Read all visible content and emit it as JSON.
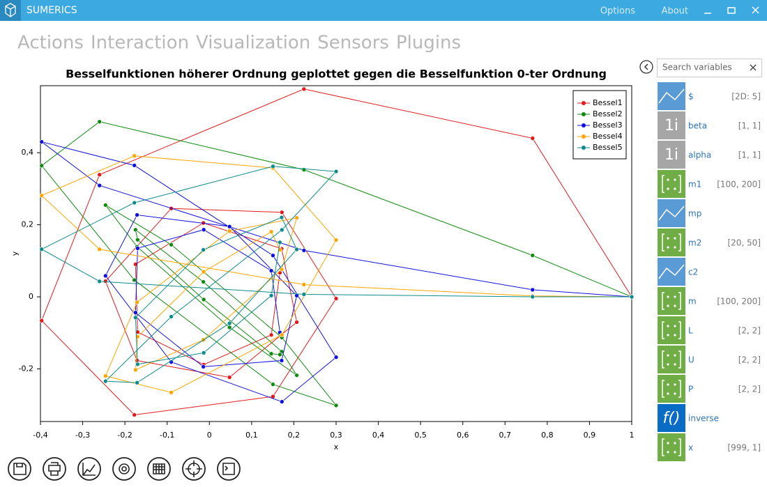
{
  "app": {
    "title": "SUMERICS",
    "menu": [
      "Options",
      "About"
    ],
    "tabs": [
      "Actions",
      "Interaction",
      "Visualization",
      "Sensors",
      "Plugins"
    ],
    "active_tab": 2,
    "search_placeholder": "Search variables",
    "variables": [
      {
        "name": "$",
        "size": "[2D: 5]",
        "color": "#5b9bd5"
      },
      {
        "name": "beta",
        "size": "[1, 1]",
        "color": "#a6a6a6",
        "icon": "1i"
      },
      {
        "name": "alpha",
        "size": "[1, 1]",
        "color": "#a6a6a6",
        "icon": "1i"
      },
      {
        "name": "m1",
        "size": "[100, 200]",
        "color": "#70ad47"
      },
      {
        "name": "mp",
        "color": "#5b9bd5"
      },
      {
        "name": "m2",
        "size": "[20, 50]",
        "color": "#70ad47"
      },
      {
        "name": "c2",
        "color": "#5b9bd5"
      },
      {
        "name": "m",
        "size": "[100, 200]",
        "color": "#70ad47"
      },
      {
        "name": "L",
        "size": "[2, 2]",
        "color": "#70ad47"
      },
      {
        "name": "U",
        "size": "[2, 2]",
        "color": "#70ad47"
      },
      {
        "name": "P",
        "size": "[2, 2]",
        "color": "#70ad47"
      },
      {
        "name": "inverse",
        "color": "#0a6cc4",
        "icon": "f()"
      },
      {
        "name": "x",
        "size": "[999, 1]",
        "color": "#70ad47"
      }
    ]
  },
  "chart_data": {
    "type": "line",
    "title": "Besselfunktionen höherer Ordnung geplottet gegen die Besselfunktion 0-ter Ordnung",
    "x_label": "x",
    "y_label": "y",
    "x": [
      1,
      0.7652,
      0.2239,
      -0.2601,
      -0.3971,
      -0.1776,
      0.1506,
      0.3001,
      0.1717,
      -0.0903,
      -0.2459,
      -0.1712,
      0.0477,
      0.2069,
      0.1711,
      -0.0142,
      -0.1749,
      -0.1699,
      -0.0134,
      0.1466,
      0.167
    ],
    "series": [
      {
        "name": "Bessel1",
        "color": "#e31a1c",
        "values": [
          0,
          0.4401,
          0.5767,
          0.3391,
          -0.066,
          -0.3276,
          -0.2767,
          -0.0047,
          0.2346,
          0.2453,
          0.0435,
          -0.1768,
          -0.2234,
          -0.0703,
          0.1334,
          0.2051,
          0.0904,
          -0.0977,
          -0.188,
          -0.1057,
          0.0668
        ]
      },
      {
        "name": "Bessel2",
        "color": "#108a10",
        "values": [
          0,
          0.1149,
          0.3528,
          0.4861,
          0.3641,
          0.0466,
          -0.2429,
          -0.3014,
          -0.113,
          0.1448,
          0.2546,
          0.139,
          -0.0849,
          -0.2177,
          -0.152,
          0.0416,
          0.1862,
          0.1584,
          -0.0075,
          -0.1578,
          -0.1603
        ]
      },
      {
        "name": "Bessel3",
        "color": "#1010e0",
        "values": [
          0,
          0.0196,
          0.1289,
          0.3091,
          0.4302,
          0.3648,
          0.1148,
          -0.1676,
          -0.2911,
          -0.1809,
          0.0584,
          0.2273,
          0.1951,
          0.0033,
          -0.1768,
          -0.194,
          -0.0438,
          0.1349,
          0.1863,
          0.0725,
          -0.0989
        ]
      },
      {
        "name": "Bessel4",
        "color": "#ffa500",
        "values": [
          0,
          0.0025,
          0.034,
          0.132,
          0.2811,
          0.3912,
          0.3576,
          0.1578,
          -0.1054,
          -0.2655,
          -0.2196,
          -0.015,
          0.1825,
          0.2193,
          0.0762,
          -0.1192,
          -0.2026,
          -0.1107,
          0.0696,
          0.1806,
          0.1307
        ]
      },
      {
        "name": "Bessel5",
        "color": "#0e8b8b",
        "values": [
          0,
          0.0002,
          0.007,
          0.043,
          0.1321,
          0.2611,
          0.3621,
          0.3479,
          0.1858,
          -0.055,
          -0.2341,
          -0.2383,
          -0.0735,
          0.1316,
          0.2204,
          0.1305,
          -0.0575,
          -0.187,
          -0.1554,
          0.0036,
          0.1512
        ]
      }
    ],
    "xlim": [
      -0.4,
      1
    ],
    "xticks": [
      {
        "value": -0.4,
        "label": "-0,4"
      },
      {
        "value": -0.3,
        "label": "-0,3"
      },
      {
        "value": -0.2,
        "label": "-0,2"
      },
      {
        "value": -0.1,
        "label": "-0,1"
      },
      0,
      {
        "value": 0.1,
        "label": "0,1"
      },
      {
        "value": 0.2,
        "label": "0,2"
      },
      {
        "value": 0.3,
        "label": "0,3"
      },
      {
        "value": 0.4,
        "label": "0,4"
      },
      {
        "value": 0.5,
        "label": "0,5"
      },
      {
        "value": 0.6,
        "label": "0,6"
      },
      {
        "value": 0.7,
        "label": "0,7"
      },
      {
        "value": 0.8,
        "label": "0,8"
      },
      {
        "value": 0.9,
        "label": "0,9"
      },
      1
    ],
    "ylim": [
      -0.346,
      0.586
    ],
    "yticks": [
      {
        "value": -0.2,
        "label": "-0,2"
      },
      0,
      {
        "value": 0.2,
        "label": "0,2"
      },
      {
        "value": 0.4,
        "label": "0,4"
      }
    ],
    "legend": "upper right",
    "markers": true
  }
}
